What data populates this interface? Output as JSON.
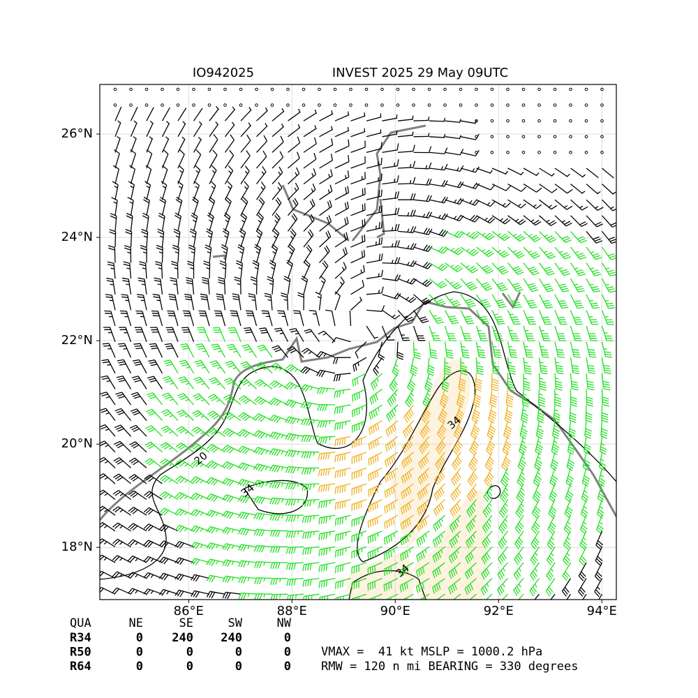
{
  "title_left": "IO942025",
  "title_right": "INVEST 2025 29 May 09UTC",
  "map": {
    "xlim": [
      84.28,
      94.28
    ],
    "ylim": [
      16.99,
      26.96
    ],
    "xticks": [
      {
        "value": 86,
        "label": "86°E"
      },
      {
        "value": 88,
        "label": "88°E"
      },
      {
        "value": 90,
        "label": "90°E"
      },
      {
        "value": 92,
        "label": "92°E"
      },
      {
        "value": 94,
        "label": "94°E"
      }
    ],
    "yticks": [
      {
        "value": 18,
        "label": "18°N"
      },
      {
        "value": 20,
        "label": "20°N"
      },
      {
        "value": 22,
        "label": "22°N"
      },
      {
        "value": 24,
        "label": "24°N"
      },
      {
        "value": 26,
        "label": "26°N"
      }
    ],
    "grid": true,
    "contour_labels": [
      20,
      34,
      34,
      34
    ]
  },
  "table": {
    "header": [
      "QUA",
      "NE",
      "SE",
      "SW",
      "NW"
    ],
    "rows": [
      [
        "R34",
        0,
        240,
        240,
        0
      ],
      [
        "R50",
        0,
        0,
        0,
        0
      ],
      [
        "R64",
        0,
        0,
        0,
        0
      ]
    ]
  },
  "info": [
    "VMAX =  41 kt MSLP = 1000.2 hPa",
    "RMW = 120 n mi BEARING = 330 degrees"
  ]
}
